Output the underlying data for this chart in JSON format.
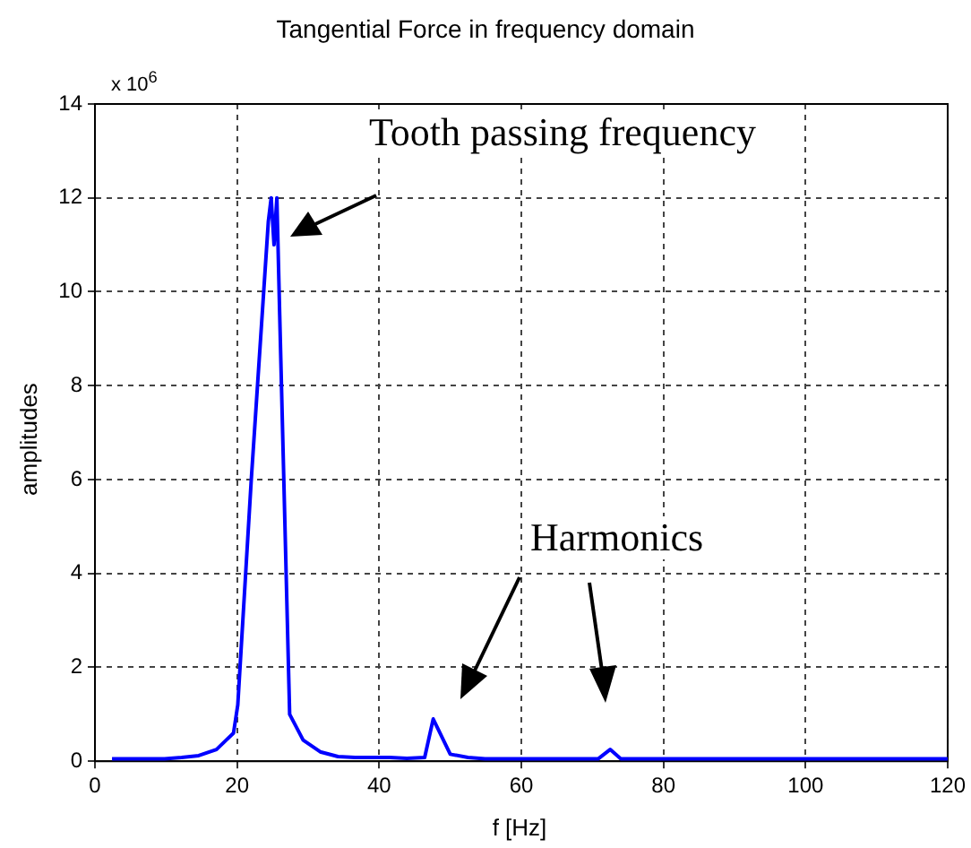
{
  "chart_data": {
    "type": "line",
    "title": "Tangential Force in frequency domain",
    "xlabel": "f [Hz]",
    "ylabel": "amplitudes",
    "annotations": [
      "x 10$^{6}$",
      "Tooth passing frequency",
      "Harmonics"
    ],
    "x": [
      2.4,
      4.9,
      7.3,
      9.8,
      12.2,
      14.6,
      17.1,
      19.5,
      20.1,
      22,
      24.4,
      24.8,
      25.2,
      25.6,
      26,
      27.4,
      29.3,
      31.7,
      34.2,
      36.6,
      41.5,
      43.9,
      46.4,
      47.6,
      50,
      52.5,
      54.9,
      70.8,
      72.5,
      74,
      120
    ],
    "series": [
      {
        "color": "#0000ff",
        "values": [
          0.05,
          0.05,
          0.05,
          0.05,
          0.08,
          0.12,
          0.25,
          0.6,
          1.2,
          6,
          11.5,
          12,
          11,
          12,
          9.5,
          1,
          0.45,
          0.2,
          0.1,
          0.08,
          0.08,
          0.06,
          0.08,
          0.9,
          0.15,
          0.08,
          0.05,
          0.05,
          0.25,
          0.05,
          0.05
        ]
      }
    ],
    "xlim": [
      0,
      120
    ],
    "xticks": [
      0,
      20,
      40,
      60,
      80,
      100,
      120
    ],
    "ylim": [
      0,
      14
    ],
    "yticks": [
      0,
      2,
      4,
      6,
      8,
      10,
      12,
      14
    ],
    "grid": true,
    "legend": false,
    "marker": "none",
    "line_style": "solid"
  }
}
